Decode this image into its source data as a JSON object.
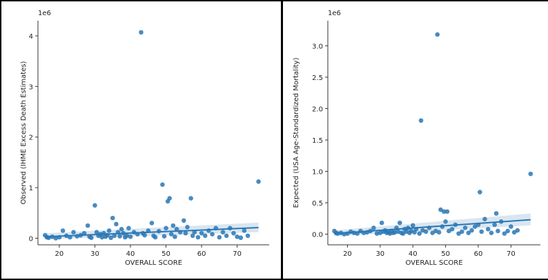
{
  "chart_data": [
    {
      "type": "scatter",
      "title": "",
      "xlabel": "OVERALL SCORE",
      "ylabel": "Observed (IHME Excess Death Estimates)",
      "y_exponent_label": "1e6",
      "xlim": [
        14,
        79
      ],
      "ylim": [
        -0.13,
        4.3
      ],
      "xticks": [
        20,
        30,
        40,
        50,
        60,
        70
      ],
      "yticks": [
        0,
        1,
        2,
        3,
        4
      ],
      "ytick_labels": [
        "0",
        "1",
        "2",
        "3",
        "4"
      ],
      "point_color": "#2a77b4",
      "regression": {
        "x": [
          16,
          76
        ],
        "y": [
          0.03,
          0.21
        ],
        "ci_upper": [
          0.1,
          0.31
        ],
        "ci_lower": [
          -0.02,
          0.12
        ]
      },
      "points": [
        [
          16,
          0.06
        ],
        [
          16.5,
          0.02
        ],
        [
          17,
          0.01
        ],
        [
          18,
          0.03
        ],
        [
          19,
          0.0
        ],
        [
          20,
          0.02
        ],
        [
          21,
          0.15
        ],
        [
          22,
          0.05
        ],
        [
          23,
          0.02
        ],
        [
          24,
          0.12
        ],
        [
          25,
          0.04
        ],
        [
          26,
          0.06
        ],
        [
          27,
          0.1
        ],
        [
          28,
          0.25
        ],
        [
          28.5,
          0.03
        ],
        [
          29,
          0.01
        ],
        [
          30,
          0.65
        ],
        [
          30.5,
          0.12
        ],
        [
          31,
          0.05
        ],
        [
          31.5,
          0.08
        ],
        [
          32,
          0.02
        ],
        [
          32.5,
          0.1
        ],
        [
          33,
          0.03
        ],
        [
          33.5,
          0.06
        ],
        [
          34,
          0.15
        ],
        [
          34.5,
          0.01
        ],
        [
          35,
          0.4
        ],
        [
          35.5,
          0.05
        ],
        [
          36,
          0.28
        ],
        [
          36.5,
          0.12
        ],
        [
          37,
          0.04
        ],
        [
          37.5,
          0.18
        ],
        [
          38,
          0.1
        ],
        [
          38.5,
          0.02
        ],
        [
          39,
          0.05
        ],
        [
          39.5,
          0.2
        ],
        [
          40,
          0.03
        ],
        [
          41,
          0.12
        ],
        [
          42,
          0.08
        ],
        [
          43,
          4.07
        ],
        [
          43.5,
          0.1
        ],
        [
          44,
          0.06
        ],
        [
          45,
          0.15
        ],
        [
          46,
          0.3
        ],
        [
          46.5,
          0.05
        ],
        [
          47,
          0.02
        ],
        [
          48,
          0.14
        ],
        [
          49,
          1.06
        ],
        [
          49.5,
          0.04
        ],
        [
          50,
          0.2
        ],
        [
          50.5,
          0.73
        ],
        [
          51,
          0.79
        ],
        [
          51.5,
          0.08
        ],
        [
          52,
          0.25
        ],
        [
          52.5,
          0.03
        ],
        [
          53,
          0.18
        ],
        [
          54,
          0.12
        ],
        [
          55,
          0.35
        ],
        [
          55.5,
          0.1
        ],
        [
          56,
          0.22
        ],
        [
          57,
          0.79
        ],
        [
          57.5,
          0.05
        ],
        [
          58,
          0.12
        ],
        [
          59,
          0.02
        ],
        [
          60,
          0.1
        ],
        [
          61,
          0.05
        ],
        [
          62,
          0.15
        ],
        [
          63,
          0.08
        ],
        [
          64,
          0.2
        ],
        [
          65,
          0.02
        ],
        [
          66,
          0.12
        ],
        [
          67,
          0.05
        ],
        [
          68,
          0.2
        ],
        [
          69,
          0.1
        ],
        [
          70,
          0.03
        ],
        [
          71,
          0.01
        ],
        [
          72,
          0.15
        ],
        [
          73,
          0.05
        ],
        [
          76,
          1.12
        ]
      ]
    },
    {
      "type": "scatter",
      "title": "",
      "xlabel": "OVERALL SCORE",
      "ylabel": "Expected (USA Age-Standardized Mortality)",
      "y_exponent_label": "1e6",
      "xlim": [
        14,
        79
      ],
      "ylim": [
        -0.17,
        3.4
      ],
      "xticks": [
        20,
        30,
        40,
        50,
        60,
        70
      ],
      "yticks": [
        0,
        0.5,
        1,
        1.5,
        2,
        2.5,
        3
      ],
      "ytick_labels": [
        "0.0",
        "0.5",
        "1.0",
        "1.5",
        "2.0",
        "2.5",
        "3.0"
      ],
      "point_color": "#2a77b4",
      "regression": {
        "x": [
          16,
          76
        ],
        "y": [
          0.01,
          0.23
        ],
        "ci_upper": [
          0.06,
          0.33
        ],
        "ci_lower": [
          -0.03,
          0.14
        ]
      },
      "points": [
        [
          16,
          0.05
        ],
        [
          16.5,
          0.02
        ],
        [
          17,
          0.01
        ],
        [
          18,
          0.02
        ],
        [
          19,
          0.0
        ],
        [
          20,
          0.01
        ],
        [
          21,
          0.04
        ],
        [
          22,
          0.02
        ],
        [
          23,
          0.01
        ],
        [
          24,
          0.05
        ],
        [
          25,
          0.02
        ],
        [
          26,
          0.03
        ],
        [
          27,
          0.05
        ],
        [
          28,
          0.1
        ],
        [
          29,
          0.01
        ],
        [
          30,
          0.02
        ],
        [
          30.5,
          0.18
        ],
        [
          31,
          0.04
        ],
        [
          31.5,
          0.06
        ],
        [
          32,
          0.02
        ],
        [
          32.5,
          0.03
        ],
        [
          33,
          0.01
        ],
        [
          33.5,
          0.05
        ],
        [
          34,
          0.02
        ],
        [
          34.5,
          0.03
        ],
        [
          35,
          0.1
        ],
        [
          35.5,
          0.04
        ],
        [
          36,
          0.18
        ],
        [
          36.5,
          0.02
        ],
        [
          37,
          0.01
        ],
        [
          37.5,
          0.08
        ],
        [
          38,
          0.04
        ],
        [
          38.5,
          0.1
        ],
        [
          39,
          0.02
        ],
        [
          39.5,
          0.05
        ],
        [
          40,
          0.14
        ],
        [
          40.5,
          0.03
        ],
        [
          41,
          0.08
        ],
        [
          42,
          0.01
        ],
        [
          42.5,
          1.81
        ],
        [
          43,
          0.06
        ],
        [
          44,
          0.04
        ],
        [
          45,
          0.1
        ],
        [
          46,
          0.02
        ],
        [
          47,
          0.05
        ],
        [
          47.5,
          3.18
        ],
        [
          48,
          0.03
        ],
        [
          48.5,
          0.39
        ],
        [
          49,
          0.12
        ],
        [
          49.5,
          0.36
        ],
        [
          50,
          0.2
        ],
        [
          50.5,
          0.36
        ],
        [
          51,
          0.05
        ],
        [
          52,
          0.08
        ],
        [
          53,
          0.15
        ],
        [
          54,
          0.01
        ],
        [
          55,
          0.04
        ],
        [
          56,
          0.1
        ],
        [
          57,
          0.02
        ],
        [
          58,
          0.06
        ],
        [
          59,
          0.12
        ],
        [
          60,
          0.15
        ],
        [
          60.5,
          0.67
        ],
        [
          61,
          0.04
        ],
        [
          62,
          0.24
        ],
        [
          63,
          0.08
        ],
        [
          64,
          0.02
        ],
        [
          65,
          0.15
        ],
        [
          65.5,
          0.33
        ],
        [
          66,
          0.05
        ],
        [
          67,
          0.2
        ],
        [
          68,
          0.01
        ],
        [
          69,
          0.05
        ],
        [
          70,
          0.12
        ],
        [
          71,
          0.03
        ],
        [
          72,
          0.06
        ],
        [
          76,
          0.96
        ]
      ]
    }
  ]
}
